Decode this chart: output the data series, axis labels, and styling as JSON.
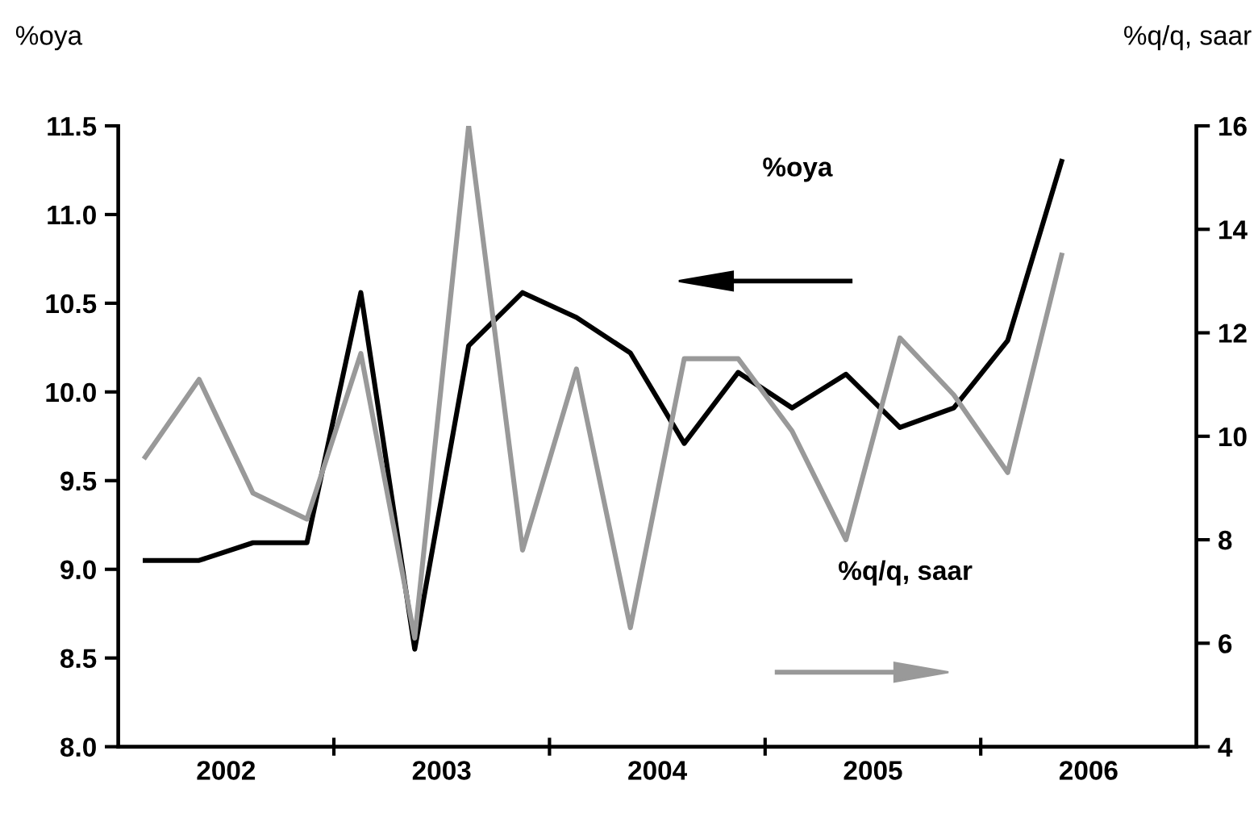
{
  "chart_data": {
    "type": "line",
    "ylabel": "%oya",
    "y2label": "%q/q, saar",
    "x": [
      2002.125,
      2002.375,
      2002.625,
      2002.875,
      2003.125,
      2003.375,
      2003.625,
      2003.875,
      2004.125,
      2004.375,
      2004.625,
      2004.875,
      2005.125,
      2005.375,
      2005.625,
      2005.875,
      2006.125,
      2006.375
    ],
    "series": [
      {
        "color": "#000000",
        "values": [
          9.05,
          9.05,
          9.15,
          9.15,
          10.56,
          8.55,
          10.26,
          10.56,
          10.42,
          10.22,
          9.71,
          10.11,
          9.91,
          10.1,
          9.8,
          9.91,
          10.29,
          11.3
        ]
      },
      {
        "color": "#999999",
        "axis": "y2",
        "values": [
          9.6,
          11.1,
          8.9,
          8.4,
          11.6,
          6.1,
          16.0,
          7.8,
          11.3,
          6.3,
          11.5,
          11.5,
          10.1,
          8.0,
          11.9,
          10.8,
          9.3,
          13.5
        ]
      }
    ],
    "annotations": [
      "%oya",
      "%q/q, saar"
    ],
    "xlim": [
      2002,
      2007
    ],
    "xticks": [
      {
        "value": 2003,
        "label": null
      },
      {
        "value": 2004,
        "label": null
      },
      {
        "value": 2005,
        "label": null
      },
      {
        "value": 2006,
        "label": null
      },
      {
        "value": 2002.5,
        "label": "2002"
      },
      {
        "value": 2003.5,
        "label": "2003"
      },
      {
        "value": 2004.5,
        "label": "2004"
      },
      {
        "value": 2005.5,
        "label": "2005"
      },
      {
        "value": 2006.5,
        "label": "2006"
      }
    ],
    "ylim": [
      8.0,
      11.5
    ],
    "yticks": [
      {
        "value": 8.0,
        "label": "8.0"
      },
      {
        "value": 8.5,
        "label": "8.5"
      },
      {
        "value": 9.0,
        "label": "9.0"
      },
      {
        "value": 9.5,
        "label": "9.5"
      },
      {
        "value": 10.0,
        "label": "10.0"
      },
      {
        "value": 10.5,
        "label": "10.5"
      },
      {
        "value": 11.0,
        "label": "11.0"
      },
      {
        "value": 11.5,
        "label": "11.5"
      }
    ],
    "y2lim": [
      4,
      16
    ],
    "y2ticks": [
      4,
      6,
      8,
      10,
      12,
      14,
      16
    ],
    "grid": false,
    "legend": false,
    "marker": "none",
    "line_style": "solid"
  }
}
